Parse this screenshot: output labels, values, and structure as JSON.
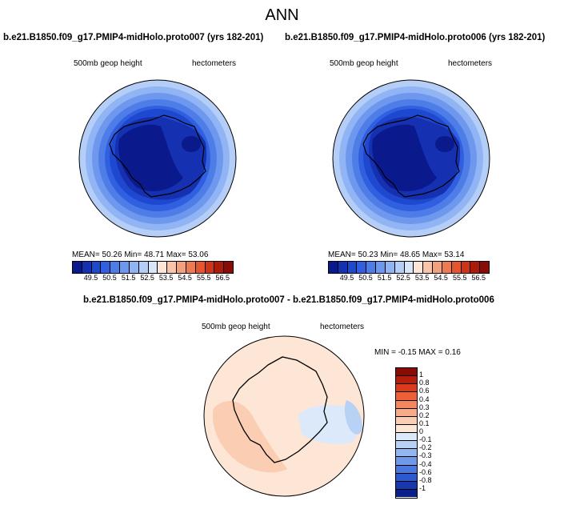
{
  "title": "ANN",
  "panels": {
    "left": {
      "title": "b.e21.B1850.f09_g17.PMIP4-midHolo.proto007 (yrs 182-201)",
      "field": "500mb geop height",
      "units": "hectometers",
      "stats": "MEAN= 50.26 Min= 48.71 Max= 53.06"
    },
    "right": {
      "title": "b.e21.B1850.f09_g17.PMIP4-midHolo.proto006 (yrs 182-201)",
      "field": "500mb geop height",
      "units": "hectometers",
      "stats": "MEAN= 50.23 Min= 48.65 Max= 53.14"
    },
    "diff": {
      "title": "b.e21.B1850.f09_g17.PMIP4-midHolo.proto007 - b.e21.B1850.f09_g17.PMIP4-midHolo.proto006",
      "field": "500mb geop height",
      "units": "hectometers",
      "stats": "MIN = -0.15 MAX = 0.16"
    }
  },
  "colorbar_main": {
    "colors": [
      "#0a1a8c",
      "#1530b0",
      "#1f48d0",
      "#3060e0",
      "#4f7de8",
      "#6e98ee",
      "#90b4f4",
      "#b5cef8",
      "#d8e6fb",
      "#fde5d8",
      "#f8c4aa",
      "#f3a07e",
      "#ee7a52",
      "#e45530",
      "#cf3418",
      "#ae1a0a",
      "#8a0a06"
    ],
    "labels": [
      "49.5",
      "50.5",
      "51.5",
      "52.5",
      "53.5",
      "54.5",
      "55.5",
      "56.5"
    ]
  },
  "colorbar_diff": {
    "colors": [
      "#8a0a06",
      "#b81c0c",
      "#dc3a1c",
      "#ee6038",
      "#f4875e",
      "#f8ab86",
      "#fbcdb2",
      "#fde6d6",
      "#dbe9fb",
      "#b8d2f6",
      "#92b6f0",
      "#6e98ea",
      "#4a78e0",
      "#2c58d0",
      "#1838b0",
      "#0a1e8c"
    ],
    "labels": [
      "1",
      "0.8",
      "0.6",
      "0.4",
      "0.3",
      "0.2",
      "0.1",
      "0",
      "-0.1",
      "-0.2",
      "-0.3",
      "-0.4",
      "-0.6",
      "-0.8",
      "-1"
    ]
  }
}
